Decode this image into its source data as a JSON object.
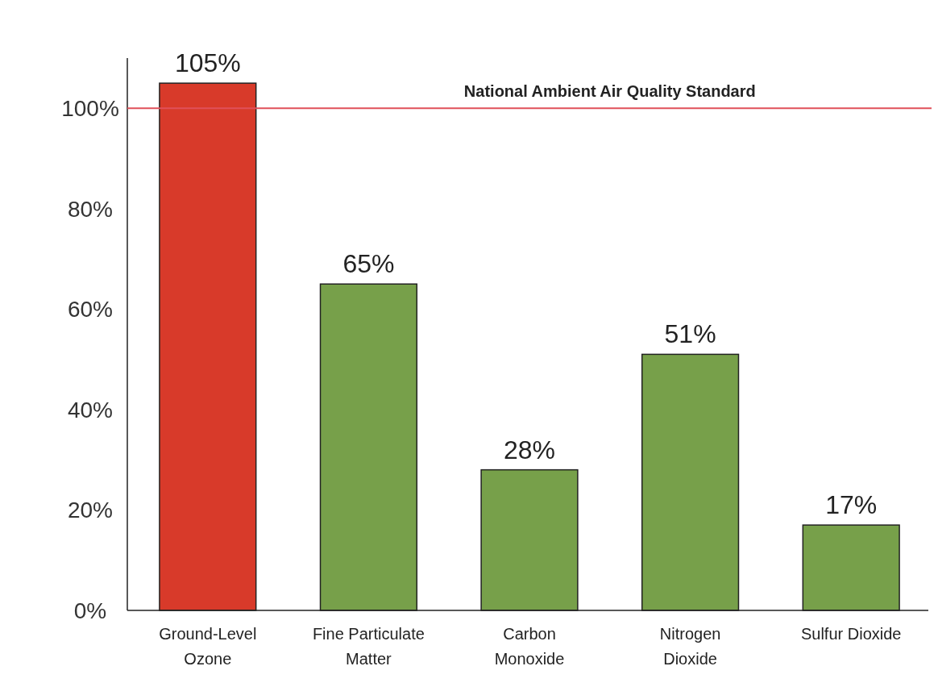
{
  "chart_data": {
    "type": "bar",
    "categories": [
      "Ground-Level\nOzone",
      "Fine Particulate\nMatter",
      "Carbon\nMonoxide",
      "Nitrogen\nDioxide",
      "Sulfur Dioxide"
    ],
    "values": [
      105,
      65,
      28,
      51,
      17
    ],
    "colors": [
      "#d83a2a",
      "#77a04a",
      "#77a04a",
      "#77a04a",
      "#77a04a"
    ],
    "ylim": [
      0,
      110
    ],
    "yticks": [
      {
        "value": 0,
        "label": "0%"
      },
      {
        "value": 20,
        "label": "20%"
      },
      {
        "value": 40,
        "label": "40%"
      },
      {
        "value": 60,
        "label": "60%"
      },
      {
        "value": 80,
        "label": "80%"
      },
      {
        "value": 100,
        "label": "100%"
      }
    ],
    "value_labels": [
      "105%",
      "65%",
      "28%",
      "51%",
      "17%"
    ],
    "ref_lines": [
      {
        "axis": "y",
        "value": 100,
        "label": "National Ambient Air Quality Standard",
        "color": "#e0505a"
      }
    ],
    "line_style": "solid"
  }
}
